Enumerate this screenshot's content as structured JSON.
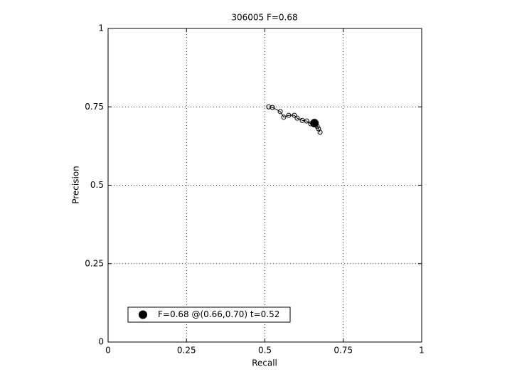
{
  "chart_data": {
    "type": "line",
    "title": "306005 F=0.68",
    "xlabel": "Recall",
    "ylabel": "Precision",
    "xlim": [
      0,
      1
    ],
    "ylim": [
      0,
      1
    ],
    "xticks": [
      0,
      0.25,
      0.5,
      0.75,
      1
    ],
    "yticks": [
      0,
      0.25,
      0.5,
      0.75,
      1
    ],
    "grid": true,
    "legend": "lower left",
    "series": [
      {
        "color": "#000000",
        "marker": "open-circle",
        "x": [
          0.512,
          0.524,
          0.549,
          0.56,
          0.576,
          0.594,
          0.603,
          0.619,
          0.633,
          0.646,
          0.658,
          0.667,
          0.671,
          0.676
        ],
        "values": [
          0.75,
          0.748,
          0.735,
          0.717,
          0.723,
          0.723,
          0.714,
          0.707,
          0.705,
          0.696,
          0.698,
          0.687,
          0.68,
          0.669
        ]
      },
      {
        "name": "F=0.68 @(0.66,0.70) t=0.52",
        "color": "#000000",
        "marker": "filled-circle",
        "x": [
          0.658
        ],
        "values": [
          0.698
        ]
      }
    ]
  }
}
